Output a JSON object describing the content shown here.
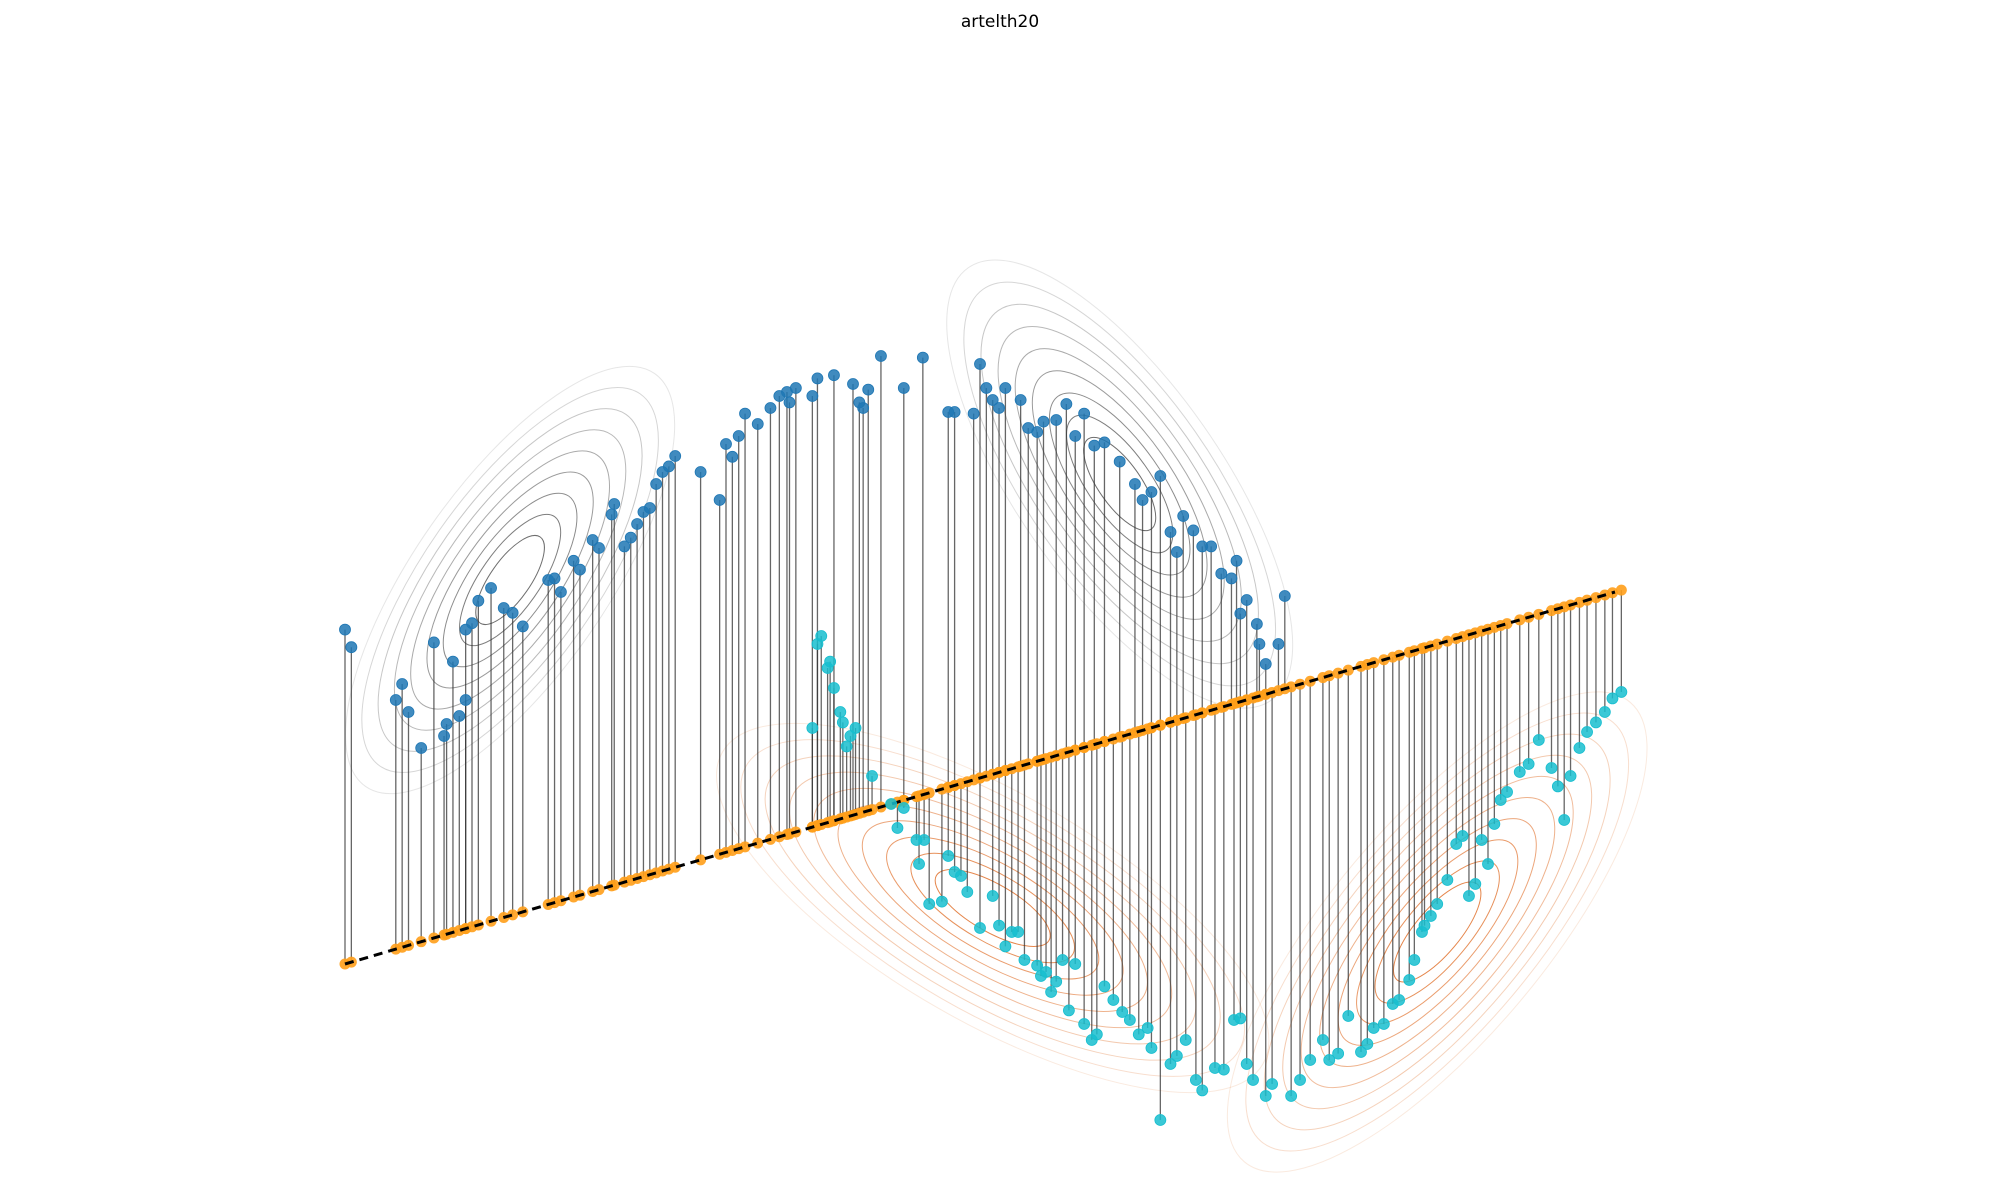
{
  "chart_data": {
    "type": "scatter",
    "title": "artelth20",
    "xlabel": "",
    "ylabel": "",
    "grid": false,
    "legend": "none",
    "colors": {
      "class_a": "#1f77b4",
      "class_b": "#17becf",
      "projection": "#ff9f1a",
      "line": "#000000",
      "contour_a": "#555555",
      "contour_b": "#e0702a"
    },
    "projection_line": {
      "from": [
        0.0,
        -1.6
      ],
      "to": [
        10.0,
        3.05
      ]
    },
    "series": [
      {
        "name": "",
        "class": "a",
        "points": [
          [
            0.0,
            2.58
          ],
          [
            0.05,
            2.36
          ],
          [
            0.4,
            1.7
          ],
          [
            0.45,
            1.9
          ],
          [
            0.6,
            1.1
          ],
          [
            0.9,
            1.5
          ],
          [
            0.95,
            1.7
          ],
          [
            0.5,
            1.55
          ],
          [
            0.78,
            1.25
          ],
          [
            0.8,
            1.4
          ],
          [
            0.85,
            2.18
          ],
          [
            0.7,
            2.42
          ],
          [
            0.95,
            2.58
          ],
          [
            1.0,
            2.66
          ],
          [
            1.05,
            2.94
          ],
          [
            1.15,
            3.1
          ],
          [
            1.25,
            2.85
          ],
          [
            1.32,
            2.79
          ],
          [
            1.4,
            2.62
          ],
          [
            1.6,
            3.2
          ],
          [
            1.65,
            3.22
          ],
          [
            1.7,
            3.05
          ],
          [
            1.8,
            3.44
          ],
          [
            1.85,
            3.33
          ],
          [
            1.95,
            3.7
          ],
          [
            2.0,
            3.6
          ],
          [
            2.1,
            4.02
          ],
          [
            2.12,
            4.15
          ],
          [
            2.2,
            3.62
          ],
          [
            2.25,
            3.73
          ],
          [
            2.3,
            3.9
          ],
          [
            2.35,
            4.05
          ],
          [
            2.4,
            4.1
          ],
          [
            2.45,
            4.4
          ],
          [
            2.5,
            4.55
          ],
          [
            2.6,
            4.75
          ],
          [
            2.55,
            4.62
          ],
          [
            2.8,
            4.55
          ],
          [
            2.95,
            4.2
          ],
          [
            3.0,
            4.9
          ],
          [
            3.05,
            4.74
          ],
          [
            3.1,
            5.0
          ],
          [
            3.15,
            5.28
          ],
          [
            3.25,
            5.15
          ],
          [
            3.35,
            5.35
          ],
          [
            3.42,
            5.5
          ],
          [
            3.48,
            5.55
          ],
          [
            3.5,
            5.42
          ],
          [
            3.55,
            5.6
          ],
          [
            3.68,
            5.5
          ],
          [
            3.72,
            5.72
          ],
          [
            3.85,
            5.76
          ],
          [
            4.0,
            5.65
          ],
          [
            4.05,
            5.42
          ],
          [
            4.08,
            5.35
          ],
          [
            4.12,
            5.58
          ],
          [
            4.22,
            6.0
          ],
          [
            4.4,
            5.6
          ],
          [
            4.55,
            5.98
          ],
          [
            4.75,
            5.3
          ],
          [
            4.8,
            5.3
          ],
          [
            4.95,
            5.28
          ],
          [
            5.0,
            5.9
          ],
          [
            5.05,
            5.6
          ],
          [
            5.1,
            5.45
          ],
          [
            5.15,
            5.35
          ],
          [
            5.2,
            5.6
          ],
          [
            5.32,
            5.45
          ],
          [
            5.38,
            5.1
          ],
          [
            5.45,
            5.05
          ],
          [
            5.5,
            5.18
          ],
          [
            5.6,
            5.2
          ],
          [
            5.68,
            5.4
          ],
          [
            5.75,
            5.0
          ],
          [
            5.82,
            5.28
          ],
          [
            5.9,
            4.88
          ],
          [
            5.98,
            4.92
          ],
          [
            6.1,
            4.68
          ],
          [
            6.22,
            4.4
          ],
          [
            6.28,
            4.2
          ],
          [
            6.35,
            4.3
          ],
          [
            6.42,
            4.5
          ],
          [
            6.5,
            3.8
          ],
          [
            6.55,
            3.55
          ],
          [
            6.6,
            4.0
          ],
          [
            6.68,
            3.82
          ],
          [
            6.75,
            3.62
          ],
          [
            6.82,
            3.62
          ],
          [
            6.9,
            3.28
          ],
          [
            6.98,
            3.22
          ],
          [
            7.02,
            3.44
          ],
          [
            7.05,
            2.78
          ],
          [
            7.1,
            2.95
          ],
          [
            7.18,
            2.65
          ],
          [
            7.2,
            2.4
          ],
          [
            7.25,
            2.15
          ],
          [
            7.35,
            2.4
          ],
          [
            7.4,
            3.0
          ]
        ]
      },
      {
        "name": "",
        "class": "b",
        "points": [
          [
            3.68,
            1.35
          ],
          [
            3.72,
            2.4
          ],
          [
            3.75,
            2.5
          ],
          [
            3.8,
            2.1
          ],
          [
            3.82,
            2.18
          ],
          [
            3.85,
            1.85
          ],
          [
            3.9,
            1.55
          ],
          [
            3.92,
            1.42
          ],
          [
            3.95,
            1.12
          ],
          [
            3.98,
            1.25
          ],
          [
            4.02,
            1.35
          ],
          [
            4.15,
            0.75
          ],
          [
            4.3,
            0.4
          ],
          [
            4.35,
            0.1
          ],
          [
            4.4,
            0.35
          ],
          [
            4.5,
            -0.05
          ],
          [
            4.52,
            -0.35
          ],
          [
            4.56,
            -0.05
          ],
          [
            4.6,
            -0.85
          ],
          [
            4.7,
            -0.82
          ],
          [
            4.75,
            -0.25
          ],
          [
            4.8,
            -0.45
          ],
          [
            4.85,
            -0.5
          ],
          [
            4.9,
            -0.7
          ],
          [
            5.0,
            -1.15
          ],
          [
            5.1,
            -0.75
          ],
          [
            5.15,
            -1.12
          ],
          [
            5.2,
            -1.38
          ],
          [
            5.25,
            -1.2
          ],
          [
            5.3,
            -1.2
          ],
          [
            5.35,
            -1.55
          ],
          [
            5.45,
            -1.62
          ],
          [
            5.48,
            -1.75
          ],
          [
            5.52,
            -1.7
          ],
          [
            5.56,
            -1.95
          ],
          [
            5.6,
            -1.82
          ],
          [
            5.65,
            -1.55
          ],
          [
            5.7,
            -2.18
          ],
          [
            5.75,
            -1.6
          ],
          [
            5.82,
            -2.35
          ],
          [
            5.88,
            -2.55
          ],
          [
            5.92,
            -2.48
          ],
          [
            5.98,
            -1.88
          ],
          [
            6.05,
            -2.05
          ],
          [
            6.12,
            -2.2
          ],
          [
            6.18,
            -2.3
          ],
          [
            6.25,
            -2.48
          ],
          [
            6.32,
            -2.4
          ],
          [
            6.35,
            -2.65
          ],
          [
            6.42,
            -3.55
          ],
          [
            6.5,
            -2.85
          ],
          [
            6.55,
            -2.75
          ],
          [
            6.62,
            -2.55
          ],
          [
            6.7,
            -3.05
          ],
          [
            6.75,
            -3.18
          ],
          [
            6.85,
            -2.9
          ],
          [
            6.92,
            -2.92
          ],
          [
            7.0,
            -2.3
          ],
          [
            7.05,
            -2.28
          ],
          [
            7.1,
            -2.85
          ],
          [
            7.15,
            -3.05
          ],
          [
            7.25,
            -3.25
          ],
          [
            7.3,
            -3.1
          ],
          [
            7.45,
            -3.25
          ],
          [
            7.52,
            -3.05
          ],
          [
            7.6,
            -2.8
          ],
          [
            7.7,
            -2.55
          ],
          [
            7.75,
            -2.8
          ],
          [
            7.82,
            -2.72
          ],
          [
            7.9,
            -2.25
          ],
          [
            8.0,
            -2.7
          ],
          [
            8.05,
            -2.6
          ],
          [
            8.1,
            -2.4
          ],
          [
            8.18,
            -2.35
          ],
          [
            8.25,
            -2.1
          ],
          [
            8.3,
            -2.05
          ],
          [
            8.38,
            -1.8
          ],
          [
            8.42,
            -1.55
          ],
          [
            8.48,
            -1.2
          ],
          [
            8.5,
            -1.12
          ],
          [
            8.55,
            -1.0
          ],
          [
            8.6,
            -0.85
          ],
          [
            8.68,
            -0.55
          ],
          [
            8.75,
            -0.1
          ],
          [
            8.8,
            0.0
          ],
          [
            8.85,
            -0.75
          ],
          [
            8.9,
            -0.6
          ],
          [
            8.95,
            -0.05
          ],
          [
            9.0,
            -0.35
          ],
          [
            9.05,
            0.15
          ],
          [
            9.1,
            0.45
          ],
          [
            9.15,
            0.55
          ],
          [
            9.25,
            0.8
          ],
          [
            9.32,
            0.9
          ],
          [
            9.4,
            1.2
          ],
          [
            9.5,
            0.85
          ],
          [
            9.55,
            0.62
          ],
          [
            9.6,
            0.2
          ],
          [
            9.65,
            0.75
          ],
          [
            9.72,
            1.1
          ],
          [
            9.78,
            1.3
          ],
          [
            9.85,
            1.42
          ],
          [
            9.92,
            1.55
          ],
          [
            9.98,
            1.72
          ],
          [
            10.05,
            1.8
          ]
        ]
      }
    ]
  }
}
